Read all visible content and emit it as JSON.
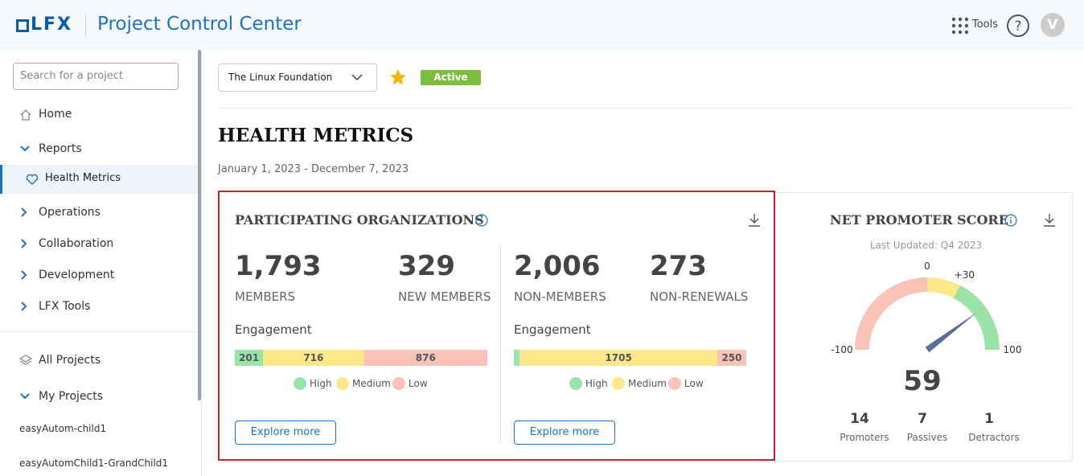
{
  "header": {
    "logo": "LFX",
    "title": "Project Control Center",
    "tools": "Tools",
    "avatar": "V"
  },
  "sidebar": {
    "search_placeholder": "Search for a project",
    "home": "Home",
    "reports": "Reports",
    "health_metrics": "Health Metrics",
    "sections": [
      "Operations",
      "Collaboration",
      "Development",
      "LFX Tools"
    ],
    "all_projects": "All Projects",
    "my_projects": "My Projects",
    "projects": [
      "easyAutom-child1",
      "easyAutomChild1-GrandChild1"
    ]
  },
  "toolbar": {
    "project": "The Linux Foundation",
    "status": "Active"
  },
  "page": {
    "title": "HEALTH METRICS",
    "date_range": "January 1, 2023 - December 7, 2023"
  },
  "participating": {
    "title": "PARTICIPATING ORGANIZATIONS",
    "legend": [
      {
        "name": "High",
        "color": "#9ae3a9"
      },
      {
        "name": "Medium",
        "color": "#fde98a"
      },
      {
        "name": "Low",
        "color": "#fbc3b7"
      }
    ],
    "groups": [
      {
        "metrics": [
          {
            "value": 1793,
            "value_label": "1,793",
            "label": "MEMBERS"
          },
          {
            "value": 329,
            "label": "NEW MEMBERS"
          }
        ],
        "engagement_label": "Engagement",
        "engagement": {
          "values": [
            201,
            716,
            876
          ],
          "value_labels": [
            "201",
            "716",
            "876"
          ]
        },
        "button": "Explore more"
      },
      {
        "metrics": [
          {
            "value": 2006,
            "value_label": "2,006",
            "label": "NON-MEMBERS"
          },
          {
            "value": 273,
            "label": "NON-RENEWALS"
          }
        ],
        "engagement_label": "Engagement",
        "engagement": {
          "values": [
            51,
            1705,
            250
          ],
          "value_labels": [
            null,
            "1705",
            "250"
          ]
        },
        "button": "Explore more"
      }
    ]
  },
  "nps": {
    "title": "NET PROMOTER SCORE",
    "updated": "Last Updated: Q4 2023",
    "gauge": {
      "lim": [
        -100,
        100
      ],
      "ticks": [
        -100,
        0,
        {
          "value": 30,
          "label": "+30"
        },
        100
      ],
      "bands": [
        {
          "from": -100,
          "to": 0,
          "color": "#fbc3b7"
        },
        {
          "from": 0,
          "to": 30,
          "color": "#fde98a"
        },
        {
          "from": 30,
          "to": 100,
          "color": "#9ae3a9"
        }
      ],
      "value": 59,
      "needle_color": "#5b6f9b"
    },
    "breakdown": [
      {
        "value": 14,
        "label": "Promoters"
      },
      {
        "value": 7,
        "label": "Passives"
      },
      {
        "value": 1,
        "label": "Detractors"
      }
    ]
  }
}
